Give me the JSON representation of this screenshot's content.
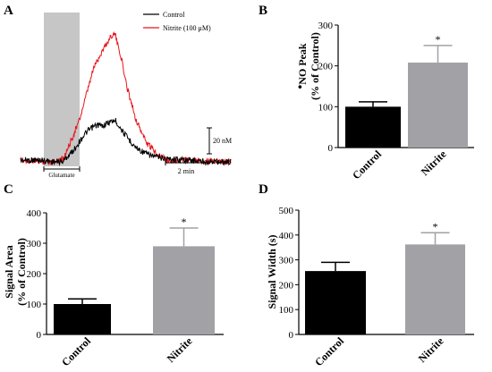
{
  "colors": {
    "control_trace": "#000000",
    "nitrite_trace": "#e8141c",
    "control_bar": "#000000",
    "nitrite_bar": "#a2a2a6",
    "glutamate_box": "#c6c6c6"
  },
  "chart_data": [
    {
      "panel": "A",
      "type": "line",
      "legend": {
        "position": "top-right"
      },
      "annotation": "Glutamate",
      "scale_bar_y": "20 nM",
      "scale_bar_x": "2 min",
      "series": [
        {
          "name": "Control",
          "points": [
            [
              0,
              96
            ],
            [
              0.1,
              96
            ],
            [
              0.15,
              97
            ],
            [
              0.18,
              97
            ],
            [
              0.2,
              97
            ],
            [
              0.22,
              94
            ],
            [
              0.25,
              90
            ],
            [
              0.28,
              84
            ],
            [
              0.3,
              80
            ],
            [
              0.32,
              77
            ],
            [
              0.35,
              74
            ],
            [
              0.37,
              73
            ],
            [
              0.39,
              74
            ],
            [
              0.41,
              72
            ],
            [
              0.43,
              71
            ],
            [
              0.45,
              70
            ],
            [
              0.47,
              74
            ],
            [
              0.5,
              80
            ],
            [
              0.55,
              88
            ],
            [
              0.6,
              92
            ],
            [
              0.65,
              94
            ],
            [
              0.7,
              95
            ],
            [
              0.8,
              96
            ],
            [
              0.9,
              97
            ],
            [
              1,
              97
            ]
          ]
        },
        {
          "name": "Nitrite (100 μM)",
          "points": [
            [
              0,
              96
            ],
            [
              0.1,
              97
            ],
            [
              0.15,
              97
            ],
            [
              0.18,
              96
            ],
            [
              0.2,
              95
            ],
            [
              0.22,
              90
            ],
            [
              0.25,
              80
            ],
            [
              0.28,
              70
            ],
            [
              0.3,
              60
            ],
            [
              0.32,
              50
            ],
            [
              0.34,
              40
            ],
            [
              0.35,
              35
            ],
            [
              0.37,
              30
            ],
            [
              0.4,
              22
            ],
            [
              0.42,
              18
            ],
            [
              0.43,
              15
            ],
            [
              0.45,
              14
            ],
            [
              0.46,
              20
            ],
            [
              0.48,
              30
            ],
            [
              0.5,
              45
            ],
            [
              0.55,
              70
            ],
            [
              0.6,
              85
            ],
            [
              0.65,
              92
            ],
            [
              0.7,
              96
            ],
            [
              0.8,
              96
            ],
            [
              0.9,
              97
            ],
            [
              1,
              97
            ]
          ]
        }
      ]
    },
    {
      "panel": "B",
      "type": "bar",
      "categories": [
        "Control",
        "Nitrite"
      ],
      "values": [
        100,
        208
      ],
      "errors": [
        12,
        42
      ],
      "significance": [
        "",
        "*"
      ],
      "ylabel_superscript": "•",
      "ylabel_line1": "NO Peak",
      "ylabel_line2": "(% of Control)",
      "ylim": [
        0,
        300
      ],
      "yticks": [
        "0",
        "100",
        "200",
        "300"
      ]
    },
    {
      "panel": "C",
      "type": "bar",
      "categories": [
        "Control",
        "Nitrite"
      ],
      "values": [
        100,
        290
      ],
      "errors": [
        17,
        60
      ],
      "significance": [
        "",
        "*"
      ],
      "ylabel_line1": "Signal Area",
      "ylabel_line2": "(% of Control)",
      "ylim": [
        0,
        400
      ],
      "yticks": [
        "0",
        "100",
        "200",
        "300",
        "400"
      ]
    },
    {
      "panel": "D",
      "type": "bar",
      "categories": [
        "Control",
        "Nitrite"
      ],
      "values": [
        255,
        362
      ],
      "errors": [
        35,
        47
      ],
      "significance": [
        "",
        "*"
      ],
      "ylabel_line1": "Signal Width (s)",
      "ylabel_line2": "",
      "ylim": [
        0,
        500
      ],
      "yticks": [
        "0",
        "100",
        "200",
        "300",
        "400",
        "500"
      ]
    }
  ]
}
